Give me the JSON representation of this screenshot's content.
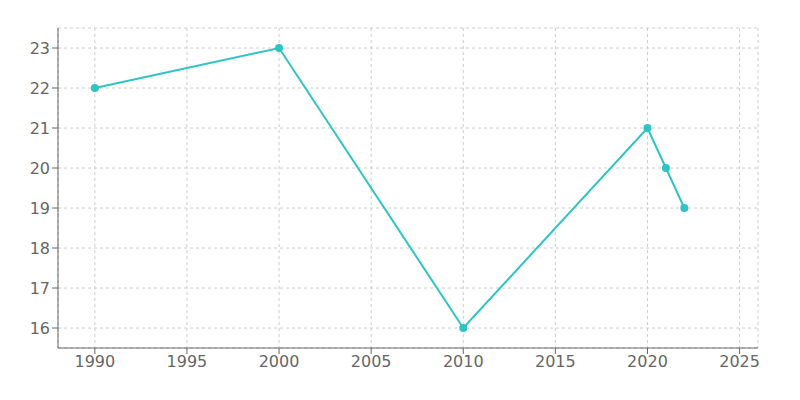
{
  "chart_data": {
    "type": "line",
    "x": [
      1990,
      2000,
      2010,
      2020,
      2021,
      2022
    ],
    "values": [
      22,
      23,
      16,
      21,
      20,
      19
    ],
    "color": "#2EC4C4",
    "marker": "o",
    "xlim": [
      1988,
      2026
    ],
    "ylim": [
      15.5,
      23.5
    ],
    "xticks": [
      1990,
      1995,
      2000,
      2005,
      2010,
      2015,
      2020,
      2025
    ],
    "yticks": [
      16,
      17,
      18,
      19,
      20,
      21,
      22,
      23
    ],
    "grid": true
  }
}
